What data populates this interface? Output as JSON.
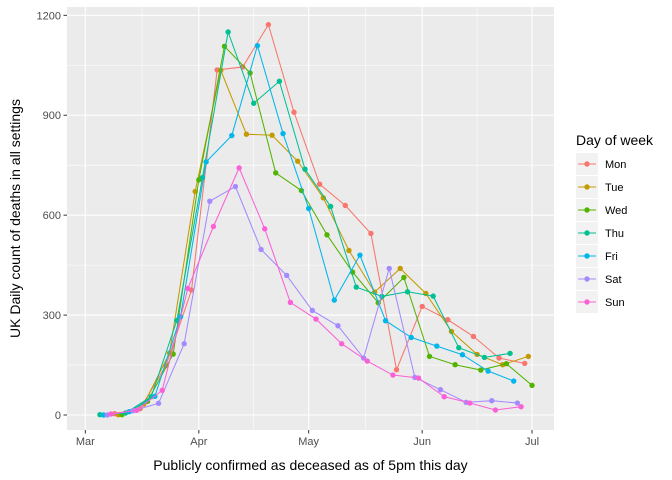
{
  "chart_data": {
    "type": "line",
    "xlabel": "Publicly confirmed as deceased as of 5pm this day",
    "ylabel": "UK Daily count of deaths in all settings",
    "x_ticks": [
      {
        "date": "2020-03-01",
        "label": "Mar"
      },
      {
        "date": "2020-04-01",
        "label": "Apr"
      },
      {
        "date": "2020-05-01",
        "label": "May"
      },
      {
        "date": "2020-06-01",
        "label": "Jun"
      },
      {
        "date": "2020-07-01",
        "label": "Jul"
      }
    ],
    "y_ticks": [
      0,
      300,
      600,
      900,
      1200
    ],
    "xlim": [
      "2020-02-25",
      "2020-07-07"
    ],
    "ylim": [
      -45,
      1225
    ],
    "grid": true,
    "legend": {
      "title": "Day of week",
      "position": "right"
    },
    "series": [
      {
        "name": "Mon",
        "color": "#F8766D",
        "points": [
          [
            "2020-03-09",
            4
          ],
          [
            "2020-03-16",
            19
          ],
          [
            "2020-03-23",
            148
          ],
          [
            "2020-03-30",
            375
          ],
          [
            "2020-04-06",
            1036
          ],
          [
            "2020-04-13",
            1045
          ],
          [
            "2020-04-20",
            1172
          ],
          [
            "2020-04-27",
            909
          ],
          [
            "2020-05-04",
            693
          ],
          [
            "2020-05-11",
            629
          ],
          [
            "2020-05-18",
            545
          ],
          [
            "2020-05-25",
            136
          ],
          [
            "2020-06-01",
            326
          ],
          [
            "2020-06-08",
            286
          ],
          [
            "2020-06-15",
            236
          ],
          [
            "2020-06-22",
            171
          ],
          [
            "2020-06-29",
            155
          ]
        ]
      },
      {
        "name": "Tue",
        "color": "#C49A00",
        "points": [
          [
            "2020-03-10",
            1
          ],
          [
            "2020-03-17",
            33
          ],
          [
            "2020-03-24",
            186
          ],
          [
            "2020-03-31",
            671
          ],
          [
            "2020-04-07",
            1035
          ],
          [
            "2020-04-14",
            843
          ],
          [
            "2020-04-21",
            840
          ],
          [
            "2020-04-28",
            762
          ],
          [
            "2020-05-05",
            652
          ],
          [
            "2020-05-12",
            494
          ],
          [
            "2020-05-19",
            369
          ],
          [
            "2020-05-26",
            440
          ],
          [
            "2020-06-02",
            365
          ],
          [
            "2020-06-09",
            251
          ],
          [
            "2020-06-16",
            182
          ],
          [
            "2020-06-23",
            151
          ],
          [
            "2020-06-30",
            176
          ]
        ]
      },
      {
        "name": "Wed",
        "color": "#53B400",
        "points": [
          [
            "2020-03-11",
            1
          ],
          [
            "2020-03-18",
            41
          ],
          [
            "2020-03-25",
            183
          ],
          [
            "2020-04-01",
            706
          ],
          [
            "2020-04-08",
            1107
          ],
          [
            "2020-04-15",
            1027
          ],
          [
            "2020-04-22",
            727
          ],
          [
            "2020-04-29",
            674
          ],
          [
            "2020-05-06",
            541
          ],
          [
            "2020-05-13",
            429
          ],
          [
            "2020-05-20",
            337
          ],
          [
            "2020-05-27",
            413
          ],
          [
            "2020-06-03",
            176
          ],
          [
            "2020-06-10",
            151
          ],
          [
            "2020-06-17",
            135
          ],
          [
            "2020-06-24",
            154
          ],
          [
            "2020-07-01",
            89
          ]
        ]
      },
      {
        "name": "Thu",
        "color": "#00C094",
        "points": [
          [
            "2020-03-05",
            1
          ],
          [
            "2020-03-12",
            6
          ],
          [
            "2020-03-19",
            55
          ],
          [
            "2020-03-26",
            284
          ],
          [
            "2020-04-02",
            713
          ],
          [
            "2020-04-09",
            1150
          ],
          [
            "2020-04-16",
            936
          ],
          [
            "2020-04-23",
            1002
          ],
          [
            "2020-04-30",
            738
          ],
          [
            "2020-05-07",
            626
          ],
          [
            "2020-05-14",
            384
          ],
          [
            "2020-05-21",
            356
          ],
          [
            "2020-05-28",
            370
          ],
          [
            "2020-06-04",
            357
          ],
          [
            "2020-06-11",
            202
          ],
          [
            "2020-06-18",
            173
          ],
          [
            "2020-06-25",
            185
          ]
        ]
      },
      {
        "name": "Fri",
        "color": "#00B6EB",
        "points": [
          [
            "2020-03-06",
            0
          ],
          [
            "2020-03-13",
            10
          ],
          [
            "2020-03-20",
            56
          ],
          [
            "2020-03-27",
            295
          ],
          [
            "2020-04-03",
            760
          ],
          [
            "2020-04-10",
            839
          ],
          [
            "2020-04-17",
            1109
          ],
          [
            "2020-04-24",
            845
          ],
          [
            "2020-05-01",
            620
          ],
          [
            "2020-05-08",
            345
          ],
          [
            "2020-05-15",
            480
          ],
          [
            "2020-05-22",
            283
          ],
          [
            "2020-05-29",
            233
          ],
          [
            "2020-06-05",
            207
          ],
          [
            "2020-06-12",
            181
          ],
          [
            "2020-06-19",
            132
          ],
          [
            "2020-06-26",
            102
          ]
        ]
      },
      {
        "name": "Sat",
        "color": "#A58AFF",
        "points": [
          [
            "2020-03-07",
            0
          ],
          [
            "2020-03-14",
            13
          ],
          [
            "2020-03-21",
            35
          ],
          [
            "2020-03-28",
            214
          ],
          [
            "2020-04-04",
            642
          ],
          [
            "2020-04-11",
            686
          ],
          [
            "2020-04-18",
            497
          ],
          [
            "2020-04-25",
            419
          ],
          [
            "2020-05-02",
            314
          ],
          [
            "2020-05-09",
            268
          ],
          [
            "2020-05-16",
            171
          ],
          [
            "2020-05-23",
            440
          ],
          [
            "2020-05-30",
            113
          ],
          [
            "2020-06-06",
            76
          ],
          [
            "2020-06-13",
            38
          ],
          [
            "2020-06-20",
            43
          ],
          [
            "2020-06-27",
            36
          ]
        ]
      },
      {
        "name": "Sun",
        "color": "#FB61D7",
        "points": [
          [
            "2020-03-08",
            3
          ],
          [
            "2020-03-15",
            14
          ],
          [
            "2020-03-22",
            74
          ],
          [
            "2020-03-29",
            380
          ],
          [
            "2020-04-05",
            566
          ],
          [
            "2020-04-12",
            742
          ],
          [
            "2020-04-19",
            559
          ],
          [
            "2020-04-26",
            338
          ],
          [
            "2020-05-03",
            288
          ],
          [
            "2020-05-10",
            214
          ],
          [
            "2020-05-17",
            162
          ],
          [
            "2020-05-24",
            120
          ],
          [
            "2020-05-31",
            111
          ],
          [
            "2020-06-07",
            55
          ],
          [
            "2020-06-14",
            36
          ],
          [
            "2020-06-21",
            15
          ],
          [
            "2020-06-28",
            25
          ]
        ]
      }
    ]
  }
}
